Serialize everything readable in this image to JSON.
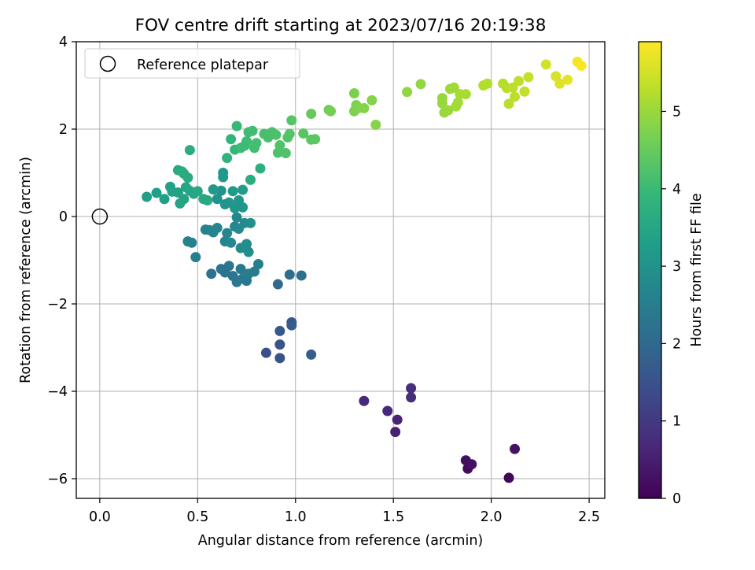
{
  "chart_data": {
    "type": "scatter",
    "title": "FOV centre drift starting at 2023/07/16 20:19:38",
    "xlabel": "Angular distance from reference (arcmin)",
    "ylabel": "Rotation from reference (arcmin)",
    "xlim": [
      -0.12,
      2.58
    ],
    "ylim": [
      -6.45,
      4.0
    ],
    "xticks": [
      0.0,
      0.5,
      1.0,
      1.5,
      2.0,
      2.5
    ],
    "xtick_labels": [
      "0.0",
      "0.5",
      "1.0",
      "1.5",
      "2.0",
      "2.5"
    ],
    "yticks": [
      -6,
      -4,
      -2,
      0,
      2,
      4
    ],
    "ytick_labels": [
      "−6",
      "−4",
      "−2",
      "0",
      "2",
      "4"
    ],
    "grid": true,
    "legend": {
      "position": "top-left",
      "entries": [
        "Reference platepar"
      ]
    },
    "reference_point": {
      "x": 0.0,
      "y": 0.0
    },
    "colorbar": {
      "label": "Hours from first FF file",
      "range": [
        0,
        5.9
      ],
      "ticks": [
        0,
        1,
        2,
        3,
        4,
        5
      ],
      "tick_labels": [
        "0",
        "1",
        "2",
        "3",
        "4",
        "5"
      ],
      "colormap": [
        "#440154",
        "#482878",
        "#3e4989",
        "#31688e",
        "#26828e",
        "#1f9e89",
        "#35b779",
        "#6ece58",
        "#b5de2b",
        "#fde725"
      ]
    },
    "series": [
      {
        "points": [
          [
            2.09,
            -5.98,
            0.05
          ],
          [
            1.88,
            -5.77,
            0.15
          ],
          [
            1.87,
            -5.58,
            0.2
          ],
          [
            1.9,
            -5.67,
            0.25
          ],
          [
            2.12,
            -5.32,
            0.3
          ],
          [
            1.51,
            -4.93,
            0.55
          ],
          [
            1.52,
            -4.65,
            0.6
          ],
          [
            1.47,
            -4.45,
            0.65
          ],
          [
            1.35,
            -4.22,
            0.7
          ],
          [
            1.59,
            -4.14,
            0.75
          ],
          [
            1.59,
            -3.93,
            0.8
          ],
          [
            0.85,
            -3.12,
            1.45
          ],
          [
            0.92,
            -3.24,
            1.5
          ],
          [
            0.92,
            -2.93,
            1.55
          ],
          [
            0.92,
            -2.62,
            1.6
          ],
          [
            0.98,
            -2.42,
            1.65
          ],
          [
            0.98,
            -2.49,
            1.7
          ],
          [
            1.08,
            -3.16,
            1.75
          ],
          [
            0.91,
            -1.55,
            2.05
          ],
          [
            0.97,
            -1.33,
            2.1
          ],
          [
            1.03,
            -1.35,
            2.15
          ],
          [
            0.57,
            -1.31,
            2.2
          ],
          [
            0.62,
            -1.2,
            2.25
          ],
          [
            0.64,
            -1.28,
            2.28
          ],
          [
            0.66,
            -1.13,
            2.3
          ],
          [
            0.68,
            -1.36,
            2.33
          ],
          [
            0.7,
            -1.5,
            2.35
          ],
          [
            0.72,
            -1.2,
            2.38
          ],
          [
            0.73,
            -1.42,
            2.4
          ],
          [
            0.75,
            -1.47,
            2.42
          ],
          [
            0.76,
            -1.31,
            2.45
          ],
          [
            0.79,
            -1.26,
            2.48
          ],
          [
            0.81,
            -1.09,
            2.5
          ],
          [
            0.49,
            -0.93,
            2.55
          ],
          [
            0.45,
            -0.57,
            2.58
          ],
          [
            0.47,
            -0.6,
            2.6
          ],
          [
            0.54,
            -0.3,
            2.62
          ],
          [
            0.56,
            -0.31,
            2.64
          ],
          [
            0.58,
            -0.36,
            2.66
          ],
          [
            0.6,
            -0.26,
            2.68
          ],
          [
            0.64,
            -0.57,
            2.7
          ],
          [
            0.65,
            -0.38,
            2.72
          ],
          [
            0.67,
            -0.6,
            2.74
          ],
          [
            0.69,
            -0.23,
            2.76
          ],
          [
            0.7,
            -0.02,
            2.78
          ],
          [
            0.71,
            -0.28,
            2.8
          ],
          [
            0.72,
            -0.72,
            2.82
          ],
          [
            0.74,
            -0.15,
            2.84
          ],
          [
            0.75,
            -0.63,
            2.86
          ],
          [
            0.76,
            -0.81,
            2.88
          ],
          [
            0.77,
            -0.15,
            2.9
          ],
          [
            0.6,
            0.4,
            3.0
          ],
          [
            0.62,
            0.59,
            3.02
          ],
          [
            0.64,
            0.28,
            3.04
          ],
          [
            0.66,
            0.32,
            3.06
          ],
          [
            0.69,
            0.19,
            3.08
          ],
          [
            0.71,
            0.37,
            3.1
          ],
          [
            0.73,
            0.21,
            3.12
          ],
          [
            0.58,
            0.62,
            3.14
          ],
          [
            0.63,
            1.0,
            3.16
          ],
          [
            0.63,
            0.9,
            3.18
          ],
          [
            0.68,
            0.58,
            3.2
          ],
          [
            0.73,
            0.61,
            3.22
          ],
          [
            0.24,
            0.45,
            3.3
          ],
          [
            0.29,
            0.54,
            3.32
          ],
          [
            0.33,
            0.4,
            3.34
          ],
          [
            0.36,
            0.68,
            3.36
          ],
          [
            0.37,
            0.57,
            3.38
          ],
          [
            0.4,
            0.55,
            3.4
          ],
          [
            0.41,
            0.3,
            3.42
          ],
          [
            0.43,
            0.4,
            3.44
          ],
          [
            0.44,
            0.67,
            3.46
          ],
          [
            0.46,
            0.59,
            3.48
          ],
          [
            0.48,
            0.52,
            3.5
          ],
          [
            0.5,
            0.58,
            3.52
          ],
          [
            0.53,
            0.4,
            3.54
          ],
          [
            0.55,
            0.37,
            3.56
          ],
          [
            0.45,
            0.89,
            3.58
          ],
          [
            0.4,
            1.06,
            3.6
          ],
          [
            0.42,
            1.03,
            3.62
          ],
          [
            0.43,
            0.98,
            3.64
          ],
          [
            0.46,
            1.52,
            3.66
          ],
          [
            0.77,
            0.84,
            3.68
          ],
          [
            0.82,
            1.1,
            3.7
          ],
          [
            0.65,
            1.34,
            3.8
          ],
          [
            0.67,
            1.77,
            3.85
          ],
          [
            0.69,
            1.53,
            3.9
          ],
          [
            0.7,
            2.07,
            3.95
          ],
          [
            0.72,
            1.57,
            4.0
          ],
          [
            0.74,
            1.62,
            4.02
          ],
          [
            0.75,
            1.72,
            4.04
          ],
          [
            0.76,
            1.93,
            4.06
          ],
          [
            0.78,
            1.96,
            4.08
          ],
          [
            0.79,
            1.57,
            4.1
          ],
          [
            0.8,
            1.68,
            4.12
          ],
          [
            0.84,
            1.89,
            4.14
          ],
          [
            0.86,
            1.81,
            4.16
          ],
          [
            0.88,
            1.93,
            4.18
          ],
          [
            0.9,
            1.87,
            4.2
          ],
          [
            0.91,
            1.46,
            4.22
          ],
          [
            0.92,
            1.63,
            4.24
          ],
          [
            0.95,
            1.45,
            4.26
          ],
          [
            0.96,
            1.81,
            4.28
          ],
          [
            0.97,
            1.89,
            4.3
          ],
          [
            0.98,
            2.2,
            4.32
          ],
          [
            1.04,
            1.9,
            4.34
          ],
          [
            1.08,
            1.76,
            4.36
          ],
          [
            1.1,
            1.77,
            4.38
          ],
          [
            1.08,
            2.35,
            4.5
          ],
          [
            1.17,
            2.44,
            4.6
          ],
          [
            1.18,
            2.41,
            4.65
          ],
          [
            1.3,
            2.82,
            4.7
          ],
          [
            1.3,
            2.41,
            4.72
          ],
          [
            1.31,
            2.55,
            4.74
          ],
          [
            1.32,
            2.48,
            4.76
          ],
          [
            1.35,
            2.48,
            4.78
          ],
          [
            1.39,
            2.66,
            4.8
          ],
          [
            1.41,
            2.1,
            4.82
          ],
          [
            1.57,
            2.85,
            4.9
          ],
          [
            1.64,
            3.03,
            4.92
          ],
          [
            1.75,
            2.71,
            4.95
          ],
          [
            1.75,
            2.59,
            4.97
          ],
          [
            1.76,
            2.38,
            4.99
          ],
          [
            1.78,
            2.43,
            5.01
          ],
          [
            1.79,
            2.92,
            5.03
          ],
          [
            1.81,
            2.95,
            5.05
          ],
          [
            1.82,
            2.52,
            5.07
          ],
          [
            1.83,
            2.61,
            5.09
          ],
          [
            1.84,
            2.8,
            5.11
          ],
          [
            1.87,
            2.8,
            5.13
          ],
          [
            1.96,
            3.0,
            5.2
          ],
          [
            1.98,
            3.04,
            5.22
          ],
          [
            2.06,
            3.04,
            5.24
          ],
          [
            2.08,
            2.94,
            5.26
          ],
          [
            2.09,
            2.58,
            5.28
          ],
          [
            2.11,
            2.95,
            5.3
          ],
          [
            2.12,
            2.74,
            5.32
          ],
          [
            2.14,
            3.1,
            5.34
          ],
          [
            2.17,
            2.86,
            5.36
          ],
          [
            2.19,
            3.19,
            5.38
          ],
          [
            2.28,
            3.48,
            5.5
          ],
          [
            2.33,
            3.21,
            5.55
          ],
          [
            2.35,
            3.04,
            5.6
          ],
          [
            2.39,
            3.13,
            5.65
          ],
          [
            2.44,
            3.54,
            5.8
          ],
          [
            2.46,
            3.45,
            5.85
          ]
        ]
      }
    ]
  }
}
